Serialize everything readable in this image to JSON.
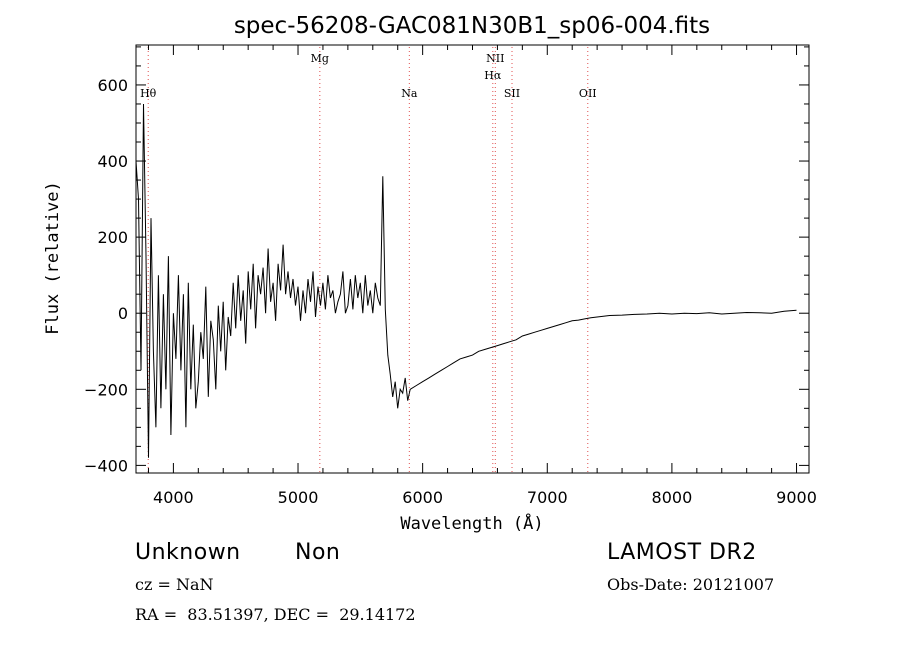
{
  "chart_data": {
    "type": "line",
    "title": "spec-56208-GAC081N30B1_sp06-004.fits",
    "xlabel": "Wavelength (Å)",
    "ylabel": "Flux (relative)",
    "xlim": [
      3700,
      9100
    ],
    "ylim": [
      -420,
      705
    ],
    "xticks": [
      4000,
      5000,
      6000,
      7000,
      8000,
      9000
    ],
    "yticks": [
      -400,
      -200,
      0,
      200,
      400,
      600
    ],
    "grid": false,
    "spectral_lines": [
      {
        "label": "Hθ",
        "x": 3798,
        "label_row": "low"
      },
      {
        "label": "Mg",
        "x": 5175,
        "label_row": "high"
      },
      {
        "label": "Na",
        "x": 5893,
        "label_row": "low"
      },
      {
        "label": "NII",
        "x": 6583,
        "label_row": "high"
      },
      {
        "label": "Hα",
        "x": 6563,
        "label_row": "mid"
      },
      {
        "label": "SII",
        "x": 6717,
        "label_row": "low"
      },
      {
        "label": "OII",
        "x": 7325,
        "label_row": "low"
      }
    ],
    "series": [
      {
        "x": [
          3700,
          3720,
          3740,
          3760,
          3780,
          3800,
          3820,
          3840,
          3860,
          3880,
          3900,
          3920,
          3940,
          3960,
          3980,
          4000,
          4020,
          4040,
          4060,
          4080,
          4100,
          4120,
          4140,
          4160,
          4180,
          4200,
          4220,
          4240,
          4260,
          4280,
          4300,
          4320,
          4340,
          4360,
          4380,
          4400,
          4420,
          4440,
          4460,
          4480,
          4500,
          4520,
          4540,
          4560,
          4580,
          4600,
          4620,
          4640,
          4660,
          4680,
          4700,
          4720,
          4740,
          4760,
          4780,
          4800,
          4820,
          4840,
          4860,
          4880,
          4900,
          4920,
          4940,
          4960,
          4980,
          5000,
          5020,
          5040,
          5060,
          5080,
          5100,
          5120,
          5140,
          5160,
          5180,
          5200,
          5220,
          5240,
          5260,
          5280,
          5300,
          5320,
          5340,
          5360,
          5380,
          5400,
          5420,
          5440,
          5460,
          5480,
          5500,
          5520,
          5540,
          5560,
          5580,
          5600,
          5620,
          5640,
          5660,
          5680,
          5700,
          5720,
          5740,
          5760,
          5780,
          5800,
          5820,
          5840,
          5860,
          5880,
          5900,
          5950,
          6000,
          6050,
          6100,
          6150,
          6200,
          6250,
          6300,
          6350,
          6400,
          6450,
          6500,
          6550,
          6600,
          6650,
          6700,
          6750,
          6800,
          6850,
          6900,
          6950,
          7000,
          7050,
          7100,
          7150,
          7200,
          7250,
          7300,
          7350,
          7400,
          7450,
          7500,
          7600,
          7700,
          7800,
          7900,
          8000,
          8100,
          8200,
          8300,
          8400,
          8500,
          8600,
          8700,
          8800,
          8900,
          9000
        ],
        "values": [
          400,
          300,
          -150,
          550,
          150,
          -380,
          250,
          -100,
          -300,
          100,
          -250,
          50,
          -200,
          150,
          -320,
          0,
          -120,
          100,
          -150,
          50,
          -300,
          80,
          -200,
          -30,
          -250,
          -180,
          -50,
          -120,
          70,
          -220,
          -20,
          -70,
          -200,
          20,
          -100,
          30,
          -150,
          -10,
          -60,
          80,
          -40,
          100,
          -20,
          60,
          -80,
          110,
          10,
          130,
          -40,
          100,
          50,
          120,
          0,
          170,
          30,
          80,
          -20,
          130,
          60,
          180,
          50,
          110,
          40,
          90,
          20,
          70,
          -20,
          60,
          0,
          90,
          30,
          110,
          -10,
          70,
          20,
          80,
          10,
          100,
          40,
          60,
          0,
          30,
          50,
          110,
          0,
          20,
          90,
          10,
          100,
          40,
          80,
          0,
          100,
          20,
          60,
          0,
          80,
          40,
          20,
          360,
          10,
          -110,
          -160,
          -220,
          -180,
          -250,
          -200,
          -210,
          -170,
          -230,
          -200,
          -190,
          -180,
          -170,
          -160,
          -150,
          -140,
          -130,
          -120,
          -115,
          -110,
          -100,
          -95,
          -90,
          -85,
          -80,
          -75,
          -70,
          -60,
          -55,
          -50,
          -45,
          -40,
          -35,
          -30,
          -25,
          -20,
          -18,
          -15,
          -12,
          -10,
          -8,
          -6,
          -5,
          -3,
          -2,
          0,
          -2,
          0,
          -1,
          1,
          -2,
          0,
          2,
          1,
          0,
          5,
          8
        ]
      }
    ]
  },
  "footer": {
    "object_class": "Unknown",
    "subclass": "Non",
    "survey": "LAMOST DR2",
    "redshift": "cz = NaN",
    "obs_date": "Obs-Date: 20121007",
    "coords": "RA =  83.51397, DEC =  29.14172"
  }
}
